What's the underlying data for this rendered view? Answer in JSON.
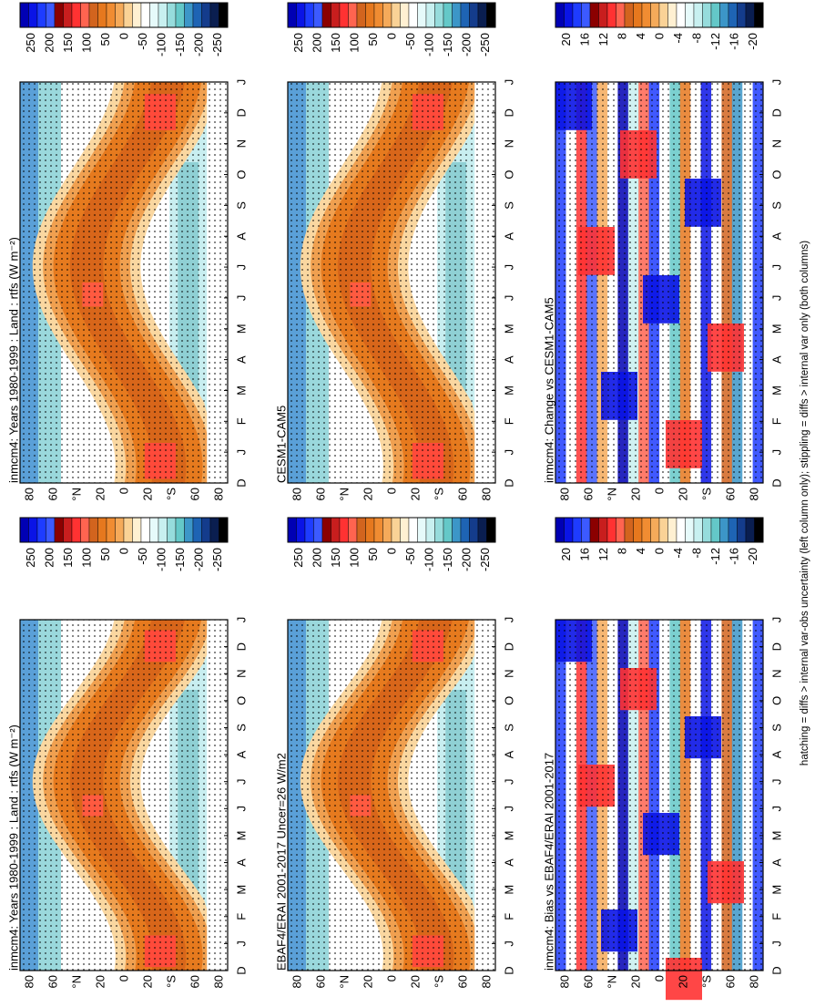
{
  "footer": "hatching = diffs > internal var-obs uncertainty (left column only); stippling = diffs > internal var only (both columns)",
  "months": [
    "D",
    "J",
    "F",
    "M",
    "A",
    "M",
    "J",
    "J",
    "A",
    "S",
    "O",
    "N",
    "D",
    "J"
  ],
  "lat_labels": [
    "80",
    "60",
    "°N",
    "20",
    "0",
    "20",
    "°S",
    "60",
    "80"
  ],
  "colorbar_labels": {
    "absolute": [
      "250",
      "200",
      "150",
      "100",
      "50",
      "0",
      "-50",
      "-100",
      "-150",
      "-200",
      "-250"
    ],
    "difference": [
      "20",
      "16",
      "12",
      "8",
      "4",
      "0",
      "-4",
      "-8",
      "-12",
      "-16",
      "-20"
    ]
  },
  "panels": [
    {
      "title": "inmcm4: Years 1980-1999 : Land : rtfs (W m⁻²)",
      "scale": "absolute"
    },
    {
      "title": "CESM1-CAM5",
      "scale": "absolute"
    },
    {
      "title": "inmcm4: Change vs CESM1-CAM5",
      "scale": "difference"
    },
    {
      "title": "inmcm4: Years 1980-1999 : Land : rtfs (W m⁻²)",
      "scale": "absolute"
    },
    {
      "title": "EBAF4/ERAI 2001-2017 Uncer=26 W/m2",
      "scale": "absolute"
    },
    {
      "title": "inmcm4: Bias vs EBAF4/ERAI 2001-2017",
      "scale": "difference"
    }
  ]
}
